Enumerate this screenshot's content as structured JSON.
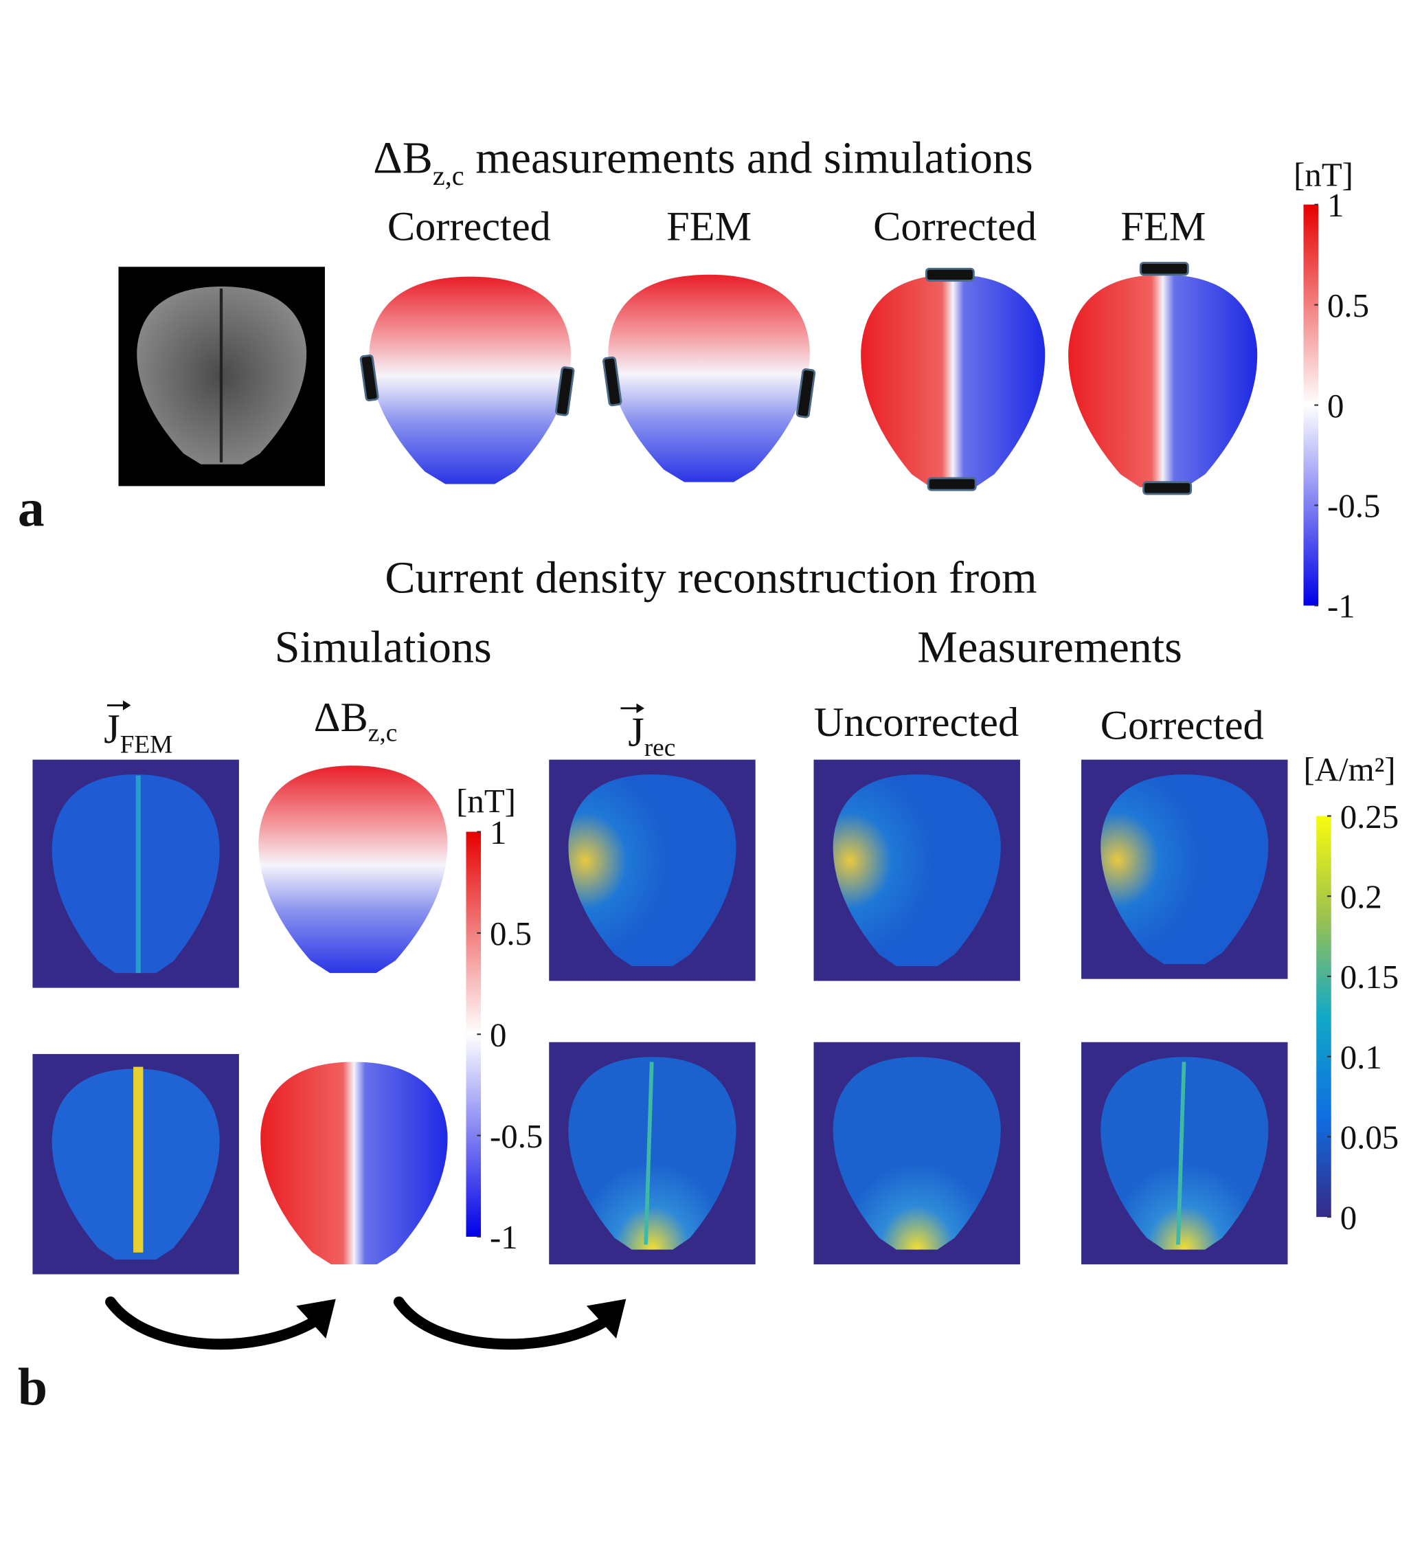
{
  "panel_a": {
    "label": "a",
    "title": {
      "main": "ΔB",
      "sub": "z,c",
      "rest": " measurements and simulations"
    },
    "columns": [
      "Corrected",
      "FEM",
      "Corrected",
      "FEM"
    ],
    "colorbar": {
      "unit": "[nT]",
      "ticks": [
        1,
        0.5,
        0,
        -0.5,
        -1
      ]
    }
  },
  "panel_b": {
    "label": "b",
    "title": "Current density reconstruction from",
    "groups": [
      "Simulations",
      "Measurements"
    ],
    "columns": [
      {
        "main": "J",
        "sub": "FEM"
      },
      {
        "main": "ΔB",
        "sub": "z,c"
      },
      {
        "main": "J",
        "sub": "rec"
      },
      {
        "main": "Uncorrected"
      },
      {
        "main": "Corrected"
      }
    ],
    "colorbar_field": {
      "unit": "[nT]",
      "ticks": [
        1,
        0.5,
        0,
        -0.5,
        -1
      ]
    },
    "colorbar_current": {
      "unit": "[A/m²]",
      "ticks": [
        0.25,
        0.2,
        0.15,
        0.1,
        0.05,
        0
      ]
    }
  }
}
